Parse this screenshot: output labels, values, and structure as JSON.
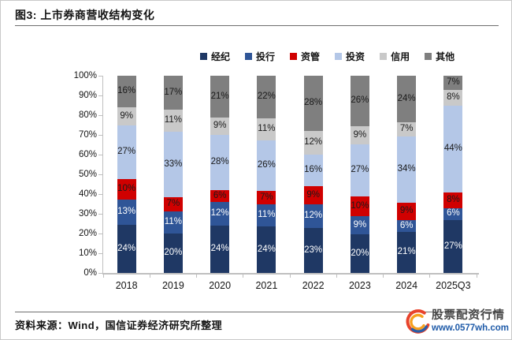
{
  "figure": {
    "title": "图3: 上市券商营收结构变化"
  },
  "source": {
    "text": "资料来源：Wind，国信证券经济研究所整理"
  },
  "brand": {
    "name": "股票配资行情",
    "url": "www.0577wh.com",
    "icon_colors": {
      "outer": "#e8432c",
      "inner": "#f6a01e",
      "swoosh": "#2b5da7"
    }
  },
  "chart_data": {
    "type": "bar",
    "stacked": true,
    "percent": true,
    "grid": false,
    "legend_position": "top",
    "categories": [
      "2018",
      "2019",
      "2020",
      "2021",
      "2022",
      "2023",
      "2024",
      "2025Q3"
    ],
    "series": [
      {
        "name": "经纪",
        "color": "#1f3864",
        "label_color": "#ffffff",
        "values": [
          24,
          20,
          24,
          24,
          23,
          20,
          21,
          27
        ]
      },
      {
        "name": "投行",
        "color": "#2f5597",
        "label_color": "#ffffff",
        "values": [
          13,
          11,
          12,
          11,
          12,
          9,
          6,
          6
        ]
      },
      {
        "name": "资管",
        "color": "#d00000",
        "label_color": "#1a1a1a",
        "values": [
          10,
          7,
          6,
          7,
          9,
          10,
          9,
          8
        ]
      },
      {
        "name": "投资",
        "color": "#b4c7e7",
        "label_color": "#1a1a1a",
        "values": [
          27,
          33,
          28,
          26,
          16,
          27,
          34,
          44
        ]
      },
      {
        "name": "信用",
        "color": "#c9c9c9",
        "label_color": "#1a1a1a",
        "values": [
          9,
          11,
          9,
          11,
          12,
          9,
          7,
          8
        ]
      },
      {
        "name": "其他",
        "color": "#7f7f7f",
        "label_color": "#1a1a1a",
        "values": [
          16,
          17,
          21,
          22,
          28,
          26,
          24,
          7
        ]
      }
    ],
    "y_axis": {
      "min": 0,
      "max": 100,
      "step": 10,
      "tick_suffix": "%"
    },
    "axis_color": "#bfbfbf"
  }
}
